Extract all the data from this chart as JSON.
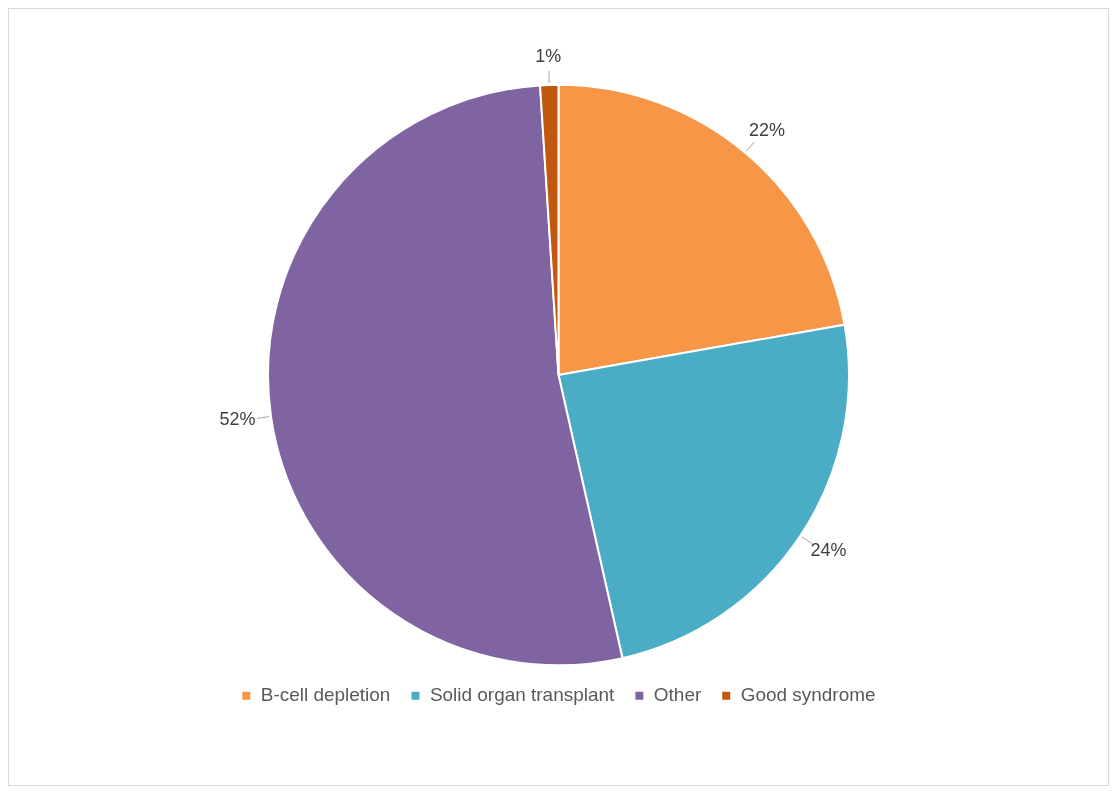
{
  "chart_data": {
    "type": "pie",
    "categories": [
      "B-cell depletion",
      "Solid organ transplant",
      "Other",
      "Good syndrome"
    ],
    "values": [
      22,
      24,
      52,
      1
    ],
    "colors": [
      "#f79646",
      "#4bacc6",
      "#8064a2",
      "#c0580f"
    ],
    "value_labels": [
      "22%",
      "24%",
      "52%",
      "1%"
    ],
    "legend": "bottom"
  }
}
